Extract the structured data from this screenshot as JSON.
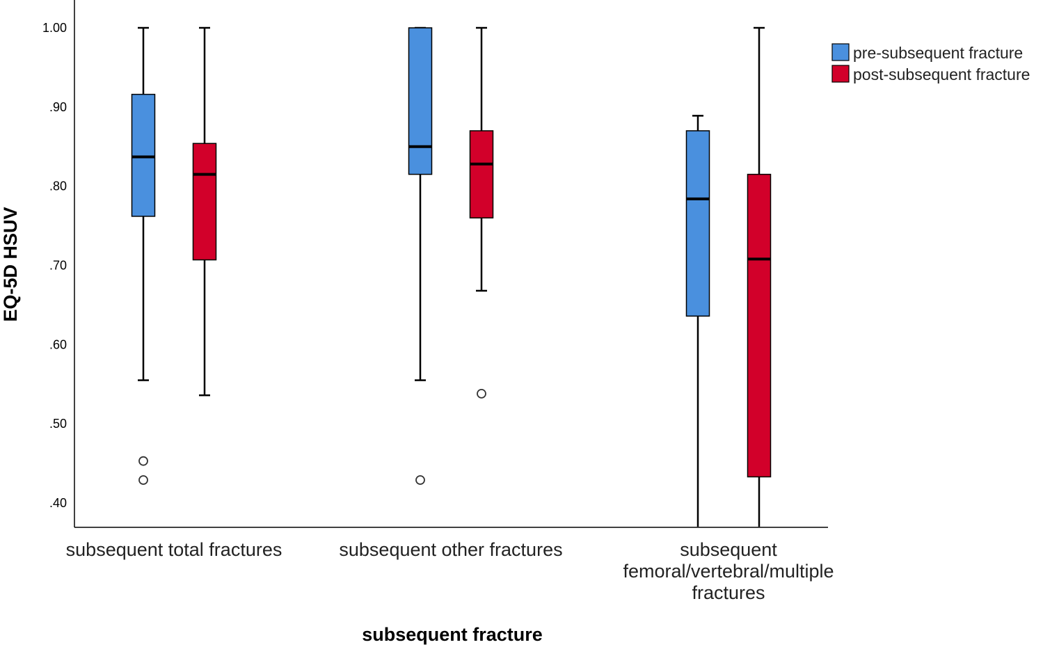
{
  "chart_data": {
    "type": "boxplot",
    "xlabel": "subsequent fracture",
    "ylabel": "EQ-5D HSUV",
    "ylim": [
      0.37,
      1.035
    ],
    "yticks": [
      1.0,
      0.9,
      0.8,
      0.7,
      0.6,
      0.5,
      0.4
    ],
    "ytick_labels": [
      "1.00",
      ".90",
      ".80",
      ".70",
      ".60",
      ".50",
      ".40"
    ],
    "categories": [
      [
        "subsequent total fractures"
      ],
      [
        "subsequent other fractures"
      ],
      [
        "subsequent",
        "femoral/vertebral/multiple",
        "fractures"
      ]
    ],
    "legend_position": "top-right",
    "series": [
      {
        "name": "pre-subsequent fracture",
        "color": "#4A90DE",
        "boxes": [
          {
            "whisker_low": 0.555,
            "q1": 0.762,
            "median": 0.837,
            "q3": 0.916,
            "whisker_high": 1.0,
            "outliers": [
              0.453,
              0.429
            ]
          },
          {
            "whisker_low": 0.555,
            "q1": 0.815,
            "median": 0.85,
            "q3": 1.0,
            "whisker_high": 1.0,
            "outliers": [
              0.429
            ]
          },
          {
            "whisker_low": 0.37,
            "q1": 0.636,
            "median": 0.784,
            "q3": 0.87,
            "whisker_high": 0.889,
            "outliers": []
          }
        ]
      },
      {
        "name": "post-subsequent fracture",
        "color": "#D2002A",
        "boxes": [
          {
            "whisker_low": 0.536,
            "q1": 0.707,
            "median": 0.815,
            "q3": 0.854,
            "whisker_high": 1.0,
            "outliers": []
          },
          {
            "whisker_low": 0.668,
            "q1": 0.76,
            "median": 0.828,
            "q3": 0.87,
            "whisker_high": 1.0,
            "outliers": [
              0.538
            ]
          },
          {
            "whisker_low": 0.37,
            "q1": 0.433,
            "median": 0.708,
            "q3": 0.815,
            "whisker_high": 1.0,
            "outliers": []
          }
        ]
      }
    ]
  }
}
